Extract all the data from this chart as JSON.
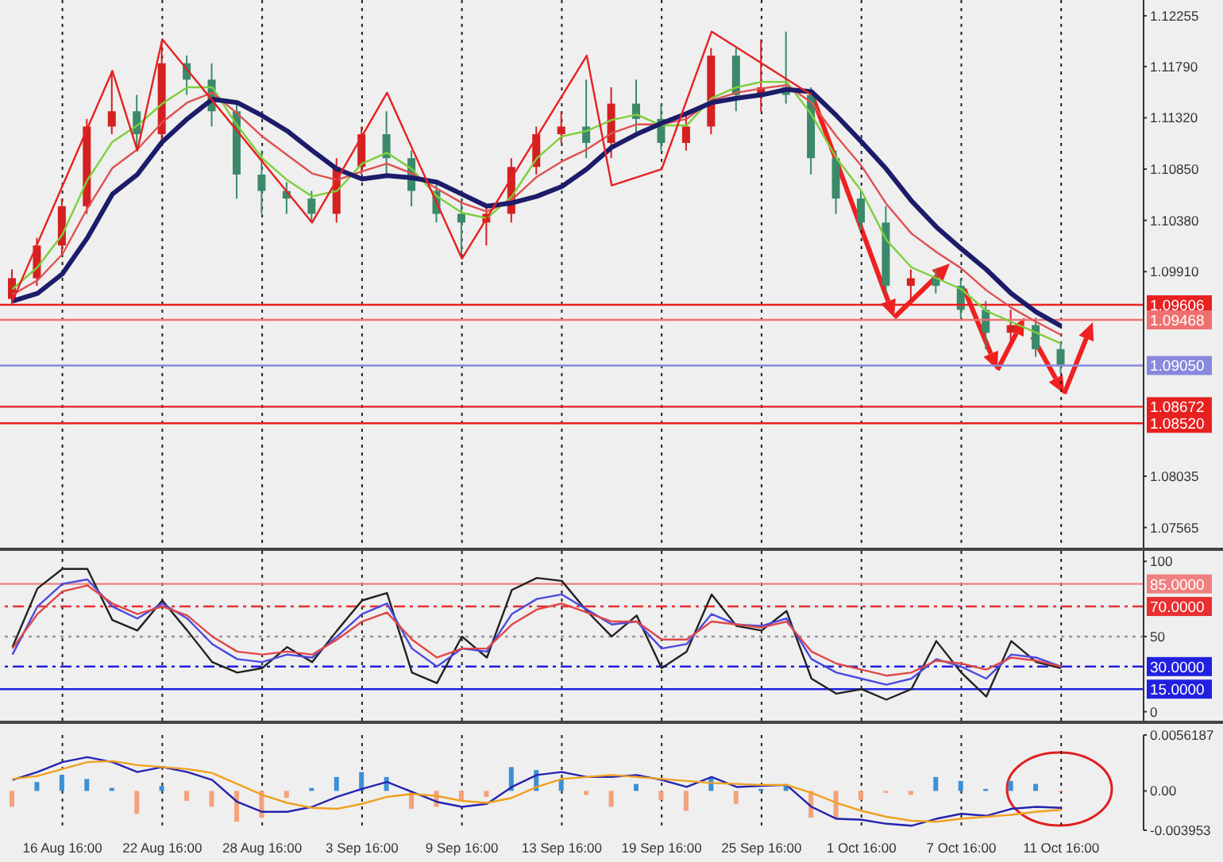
{
  "chart_data": [
    {
      "type": "candlestick",
      "categories": [
        null,
        null,
        null,
        null,
        null,
        null,
        null,
        null,
        null,
        null,
        null,
        null,
        null,
        null,
        null,
        null,
        null,
        null,
        null,
        null,
        null,
        null,
        null,
        null,
        null,
        null,
        null,
        null,
        null,
        null,
        null,
        null,
        null,
        null,
        null,
        null,
        null,
        null,
        null,
        null,
        null,
        null,
        null
      ],
      "ohlc": [
        [
          1.0966,
          1.0993,
          1.096,
          1.0985
        ],
        [
          1.0985,
          1.1022,
          1.0978,
          1.1015
        ],
        [
          1.1015,
          1.1058,
          1.1007,
          1.1051
        ],
        [
          1.1051,
          1.1131,
          1.1044,
          1.1124
        ],
        [
          1.1124,
          1.1175,
          1.1117,
          1.1138
        ],
        [
          1.1138,
          1.1153,
          1.1102,
          1.1117
        ],
        [
          1.1117,
          1.1202,
          1.1109,
          1.1182
        ],
        [
          1.1182,
          1.1189,
          1.1153,
          1.1167
        ],
        [
          1.1167,
          1.1182,
          1.1124,
          1.1138
        ],
        [
          1.1138,
          1.1145,
          1.1058,
          1.108
        ],
        [
          1.108,
          1.1102,
          1.1044,
          1.1065
        ],
        [
          1.1065,
          1.1073,
          1.1044,
          1.1058
        ],
        [
          1.1058,
          1.1065,
          1.1036,
          1.1044
        ],
        [
          1.1044,
          1.1095,
          1.1036,
          1.1087
        ],
        [
          1.1087,
          1.1124,
          1.108,
          1.1117
        ],
        [
          1.1117,
          1.1138,
          1.108,
          1.1095
        ],
        [
          1.1095,
          1.1102,
          1.1051,
          1.1065
        ],
        [
          1.1065,
          1.1073,
          1.1036,
          1.1044
        ],
        [
          1.1044,
          1.1058,
          1.1007,
          1.1036
        ],
        [
          1.1036,
          1.1051,
          1.1015,
          1.1044
        ],
        [
          1.1044,
          1.1095,
          1.1036,
          1.1087
        ],
        [
          1.1087,
          1.1124,
          1.108,
          1.1117
        ],
        [
          1.1117,
          1.1138,
          1.1109,
          1.1124
        ],
        [
          1.1124,
          1.1167,
          1.1095,
          1.1109
        ],
        [
          1.1109,
          1.116,
          1.1095,
          1.1145
        ],
        [
          1.1145,
          1.1167,
          1.1117,
          1.1131
        ],
        [
          1.1131,
          1.1145,
          1.1102,
          1.1109
        ],
        [
          1.1109,
          1.1138,
          1.1102,
          1.1124
        ],
        [
          1.1124,
          1.1196,
          1.1117,
          1.1189
        ],
        [
          1.1189,
          1.1196,
          1.1138,
          1.1153
        ],
        [
          1.1153,
          1.1204,
          1.1138,
          1.116
        ],
        [
          1.116,
          1.1211,
          1.1145,
          1.1153
        ],
        [
          1.1153,
          1.116,
          1.108,
          1.1095
        ],
        [
          1.1095,
          1.1102,
          1.1044,
          1.1058
        ],
        [
          1.1058,
          1.1065,
          1.1029,
          1.1036
        ],
        [
          1.1036,
          1.1051,
          1.0971,
          1.0978
        ],
        [
          1.0978,
          1.0993,
          1.0964,
          1.0985
        ],
        [
          1.0985,
          1.0993,
          1.0971,
          1.0978
        ],
        [
          1.0978,
          1.0985,
          1.0949,
          1.0956
        ],
        [
          1.0956,
          1.0964,
          1.092,
          1.0935
        ],
        [
          1.0935,
          1.0956,
          1.0927,
          1.0942
        ],
        [
          1.0942,
          1.0949,
          1.0913,
          1.092
        ],
        [
          1.092,
          1.0927,
          1.0898,
          1.0905
        ]
      ],
      "colors": [
        "#d42020",
        "#d42020",
        "#d42020",
        "#d42020",
        "#d42020",
        "#3a8a6a",
        "#d42020",
        "#3a8a6a",
        "#3a8a6a",
        "#3a8a6a",
        "#3a8a6a",
        "#3a8a6a",
        "#3a8a6a",
        "#d42020",
        "#d42020",
        "#3a8a6a",
        "#3a8a6a",
        "#3a8a6a",
        "#3a8a6a",
        "#d42020",
        "#d42020",
        "#d42020",
        "#d42020",
        "#3a8a6a",
        "#d42020",
        "#3a8a6a",
        "#3a8a6a",
        "#d42020",
        "#d42020",
        "#3a8a6a",
        "#d42020",
        "#3a8a6a",
        "#3a8a6a",
        "#3a8a6a",
        "#3a8a6a",
        "#3a8a6a",
        "#d42020",
        "#3a8a6a",
        "#3a8a6a",
        "#3a8a6a",
        "#d42020",
        "#3a8a6a",
        "#3a8a6a"
      ],
      "series": [
        {
          "type": "line",
          "color": "#7ccf3a",
          "values": [
            1.0975,
            1.0995,
            1.1025,
            1.1075,
            1.111,
            1.1125,
            1.1145,
            1.116,
            1.116,
            1.1125,
            1.1095,
            1.1075,
            1.106,
            1.1065,
            1.109,
            1.11,
            1.1085,
            1.106,
            1.1045,
            1.104,
            1.106,
            1.1095,
            1.1115,
            1.112,
            1.113,
            1.1135,
            1.1125,
            1.1125,
            1.115,
            1.116,
            1.1165,
            1.1165,
            1.1135,
            1.1095,
            1.1065,
            1.102,
            1.0995,
            1.0985,
            1.0975,
            1.0955,
            1.0945,
            1.0935,
            1.0925
          ]
        },
        {
          "type": "line",
          "color": "#e05050",
          "values": [
            1.097,
            1.0983,
            1.1007,
            1.1049,
            1.1086,
            1.1103,
            1.1128,
            1.1146,
            1.1155,
            1.1136,
            1.1115,
            1.1098,
            1.1081,
            1.1075,
            1.1083,
            1.109,
            1.1081,
            1.1067,
            1.1054,
            1.1046,
            1.1057,
            1.1078,
            1.1092,
            1.1103,
            1.1118,
            1.1126,
            1.1126,
            1.1131,
            1.1148,
            1.1155,
            1.1159,
            1.1162,
            1.1146,
            1.1115,
            1.1088,
            1.1053,
            1.1026,
            1.1009,
            1.0994,
            1.0974,
            1.0958,
            1.0945,
            1.0933
          ]
        },
        {
          "type": "line",
          "color": "#1c1c6a",
          "values": [
            1.0964,
            1.0971,
            1.0989,
            1.1022,
            1.1062,
            1.108,
            1.111,
            1.1131,
            1.1149,
            1.1146,
            1.1134,
            1.112,
            1.1102,
            1.1085,
            1.1076,
            1.1079,
            1.1077,
            1.1073,
            1.1062,
            1.1051,
            1.1054,
            1.106,
            1.1069,
            1.1085,
            1.1105,
            1.1117,
            1.1127,
            1.1136,
            1.1146,
            1.115,
            1.1153,
            1.1158,
            1.1156,
            1.1134,
            1.111,
            1.1085,
            1.1056,
            1.1032,
            1.1012,
            1.0993,
            1.0971,
            1.0954,
            1.0941
          ]
        },
        {
          "type": "line",
          "color": "#e82020",
          "values": [
            1.0964,
            null,
            null,
            null,
            1.1175,
            1.1102,
            1.1204,
            null,
            null,
            null,
            null,
            null,
            1.1036,
            null,
            null,
            1.1155,
            null,
            null,
            1.1003,
            null,
            null,
            null,
            null,
            1.1189,
            1.107,
            null,
            1.1085,
            null,
            1.1211,
            null,
            null,
            null,
            1.1153,
            null,
            null,
            null,
            null,
            null,
            null,
            null,
            null,
            null,
            null
          ]
        }
      ],
      "ylim": [
        1.0738,
        1.124
      ],
      "yticks": [
        1.12255,
        {
          "value": 1.1179,
          "label": "1.11790"
        },
        {
          "value": 1.1132,
          "label": "1.11320"
        },
        {
          "value": 1.1085,
          "label": "1.10850"
        },
        {
          "value": 1.1038,
          "label": "1.10380"
        },
        {
          "value": 1.0991,
          "label": "1.09910"
        },
        1.08035,
        1.07565
      ],
      "ref_lines": [
        {
          "axis": "y",
          "value": 1.09606,
          "label": "1.09606",
          "color": "#e82020"
        },
        {
          "axis": "y",
          "value": 1.09468,
          "label": "1.09468",
          "color": "#f07070"
        },
        {
          "axis": "y",
          "value": 1.0905,
          "label": "1.09050",
          "color": "#8888dd"
        },
        {
          "axis": "y",
          "value": 1.08672,
          "label": "1.08672",
          "color": "#e82020"
        },
        {
          "axis": "y",
          "value": 1.0852,
          "label": "1.08520",
          "color": "#e82020"
        }
      ],
      "grid": "x",
      "tick_labels": "y"
    },
    {
      "type": "line",
      "categories": [
        null,
        null,
        null,
        null,
        null,
        null,
        null,
        null,
        null,
        null,
        null,
        null,
        null,
        null,
        null,
        null,
        null,
        null,
        null,
        null,
        null,
        null,
        null,
        null,
        null,
        null,
        null,
        null,
        null,
        null,
        null,
        null,
        null,
        null,
        null,
        null,
        null,
        null,
        null,
        null,
        null,
        null,
        null
      ],
      "series": [
        {
          "color": "#222222",
          "values": [
            43,
            82,
            95,
            95,
            61,
            54,
            74,
            54,
            33,
            26,
            29,
            43,
            33,
            54,
            74,
            79,
            26,
            19,
            50,
            36,
            81,
            89,
            87,
            67,
            50,
            64,
            29,
            40,
            78,
            57,
            54,
            67,
            22,
            12,
            15,
            8,
            15,
            47,
            26,
            10,
            47,
            33,
            29
          ]
        },
        {
          "color": "#4a4ae0",
          "values": [
            38,
            70,
            85,
            88,
            70,
            62,
            72,
            62,
            45,
            35,
            33,
            38,
            36,
            50,
            65,
            72,
            42,
            30,
            42,
            40,
            65,
            75,
            78,
            68,
            58,
            60,
            42,
            45,
            65,
            58,
            57,
            62,
            35,
            26,
            22,
            18,
            22,
            35,
            30,
            22,
            38,
            36,
            30
          ]
        },
        {
          "color": "#e04848",
          "values": [
            42,
            65,
            80,
            84,
            72,
            65,
            70,
            64,
            50,
            40,
            38,
            40,
            38,
            48,
            60,
            66,
            48,
            36,
            42,
            42,
            58,
            68,
            72,
            66,
            60,
            60,
            48,
            48,
            60,
            58,
            56,
            60,
            40,
            32,
            28,
            24,
            26,
            34,
            32,
            28,
            36,
            34,
            30
          ]
        }
      ],
      "ylim": [
        -6,
        107
      ],
      "yticks": [
        0,
        50,
        100
      ],
      "ref_lines": [
        {
          "axis": "y",
          "value": 85,
          "label": "85.0000",
          "color": "#f08080",
          "line_style": "solid"
        },
        {
          "axis": "y",
          "value": 70,
          "label": "70.0000",
          "color": "#e83030",
          "line_style": "dashed"
        },
        {
          "axis": "y",
          "value": 50,
          "label": null,
          "color": "#999999",
          "line_style": "dotted"
        },
        {
          "axis": "y",
          "value": 30,
          "label": "30.0000",
          "color": "#2020e0",
          "line_style": "dashed"
        },
        {
          "axis": "y",
          "value": 15,
          "label": "15.0000",
          "color": "#2020e0",
          "line_style": "solid"
        }
      ],
      "grid": "x",
      "tick_labels": "y"
    },
    {
      "type": "bar",
      "categories": [
        null,
        null,
        "16 Aug 16:00",
        null,
        null,
        null,
        "22 Aug 16:00",
        null,
        null,
        null,
        "28 Aug 16:00",
        null,
        null,
        null,
        "3 Sep 16:00",
        null,
        null,
        null,
        "9 Sep 16:00",
        null,
        null,
        null,
        "13 Sep 16:00",
        null,
        null,
        null,
        "19 Sep 16:00",
        null,
        null,
        null,
        "25 Sep 16:00",
        null,
        null,
        null,
        "1 Oct 16:00",
        null,
        null,
        null,
        "7 Oct 16:00",
        null,
        null,
        null,
        "11 Oct 16:00"
      ],
      "series": [
        {
          "type": "bar",
          "values": [
            -0.0016,
            0.0009,
            0.0016,
            0.0012,
            0.0003,
            -0.0023,
            0.0005,
            -0.001,
            -0.0016,
            -0.0031,
            -0.0027,
            -0.0007,
            0.0003,
            0.0014,
            0.0019,
            0.0014,
            -0.0018,
            -0.0016,
            -0.001,
            -0.0006,
            0.0024,
            0.0021,
            0.0012,
            -0.0004,
            -0.0016,
            0.0007,
            -0.0009,
            -0.002,
            0.0014,
            -0.0013,
            0.0002,
            0.0005,
            -0.0027,
            -0.0027,
            -0.0009,
            -0.0002,
            -0.0004,
            0.0014,
            0.001,
            0.0002,
            0.001,
            0.0007,
            -0.0001
          ],
          "colors": [
            "#f4a27a",
            "#3d8fd6",
            "#3d8fd6",
            "#3d8fd6",
            "#3d8fd6",
            "#f4a27a",
            "#3d8fd6",
            "#f4a27a",
            "#f4a27a",
            "#f4a27a",
            "#f4a27a",
            "#f4a27a",
            "#3d8fd6",
            "#3d8fd6",
            "#3d8fd6",
            "#3d8fd6",
            "#f4a27a",
            "#f4a27a",
            "#f4a27a",
            "#f4a27a",
            "#3d8fd6",
            "#3d8fd6",
            "#3d8fd6",
            "#f4a27a",
            "#f4a27a",
            "#3d8fd6",
            "#f4a27a",
            "#f4a27a",
            "#3d8fd6",
            "#f4a27a",
            "#3d8fd6",
            "#3d8fd6",
            "#f4a27a",
            "#f4a27a",
            "#f4a27a",
            "#f4a27a",
            "#f4a27a",
            "#3d8fd6",
            "#3d8fd6",
            "#3d8fd6",
            "#3d8fd6",
            "#3d8fd6",
            "#f4a27a"
          ]
        },
        {
          "type": "line",
          "color": "#2424b0",
          "values": [
            0.0011,
            0.0019,
            0.0029,
            0.0034,
            0.0029,
            0.0019,
            0.0024,
            0.0019,
            0.0011,
            -0.0011,
            -0.0021,
            -0.0021,
            -0.0016,
            -0.0006,
            0.0002,
            0.0009,
            -0.0001,
            -0.0011,
            -0.0016,
            -0.0013,
            0.0004,
            0.0016,
            0.0019,
            0.0014,
            0.0014,
            0.0016,
            0.0011,
            0.0004,
            0.0014,
            0.0004,
            0.0005,
            0.0006,
            -0.0016,
            -0.0028,
            -0.0029,
            -0.0033,
            -0.0035,
            -0.0028,
            -0.0023,
            -0.0025,
            -0.0018,
            -0.0016,
            -0.0017
          ]
        },
        {
          "type": "line",
          "color": "#f0a020",
          "values": [
            0.0012,
            0.0015,
            0.0022,
            0.0029,
            0.003,
            0.0026,
            0.0024,
            0.0022,
            0.0018,
            0.0007,
            -0.0004,
            -0.0012,
            -0.0017,
            -0.0018,
            -0.0013,
            -0.0006,
            -0.0003,
            -0.0005,
            -0.001,
            -0.0012,
            -0.0007,
            0.0004,
            0.0012,
            0.0014,
            0.0016,
            0.0014,
            0.0012,
            0.001,
            0.0008,
            0.0007,
            0.0006,
            0.0006,
            -0.0002,
            -0.0012,
            -0.002,
            -0.0026,
            -0.003,
            -0.0031,
            -0.0028,
            -0.0026,
            -0.0024,
            -0.0021,
            -0.0019
          ]
        }
      ],
      "ylim": [
        -0.003953,
        0.0056187
      ],
      "yticks": [
        0.0056187,
        {
          "value": 0,
          "label": "0.00"
        },
        -0.003953
      ],
      "grid": "x"
    }
  ]
}
